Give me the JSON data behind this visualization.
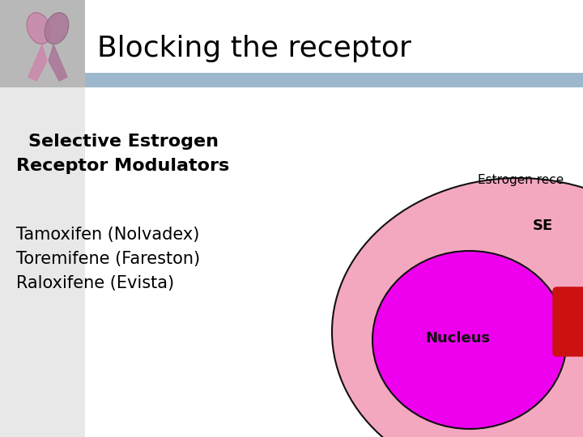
{
  "title": "Blocking the receptor",
  "title_fontsize": 26,
  "title_color": "#000000",
  "background_color": "#ffffff",
  "header_bar_color": "#9db8cc",
  "ribbon_bg_color": "#b8b8b8",
  "subtitle_line1": "Selective Estrogen",
  "subtitle_line2": "Receptor Modulators",
  "subtitle_fontsize": 16,
  "body_lines": [
    "Tamoxifen (Nolvadex)",
    "Toremifene (Fareston)",
    "Raloxifene (Evista)"
  ],
  "body_fontsize": 15,
  "outer_ellipse_color": "#f4a8c0",
  "outer_ellipse_edge": "#111111",
  "inner_ellipse_color": "#ee00ee",
  "inner_ellipse_edge": "#111111",
  "nucleus_label": "Nucleus",
  "nucleus_label_color": "#111111",
  "nucleus_label_fontsize": 13,
  "estrogen_label": "Estrogen rece",
  "estrogen_label_fontsize": 11,
  "serm_label": "SE",
  "serm_label_fontsize": 13,
  "red_block_color": "#cc1111",
  "red_block_edge": "#cc1111"
}
